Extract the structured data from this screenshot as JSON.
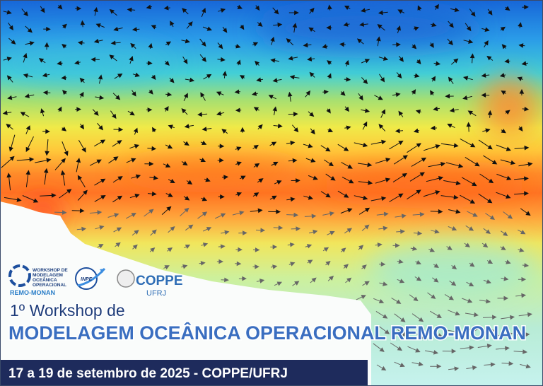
{
  "logos": {
    "workshop": {
      "lines": [
        "WORKSHOP DE",
        "MODELAGEM",
        "OCEÂNICA",
        "OPERACIONAL"
      ],
      "name": "REMO-MONAN"
    },
    "inpe": "INPE",
    "coppe": {
      "name": "COPPE",
      "sub": "UFRJ"
    }
  },
  "title": {
    "line1": "1º Workshop de",
    "line2": "MODELAGEM OCEÂNICA OPERACIONAL REMO-MONAN"
  },
  "footer": "17 a 19 de setembro de 2025 - COPPE/UFRJ"
}
